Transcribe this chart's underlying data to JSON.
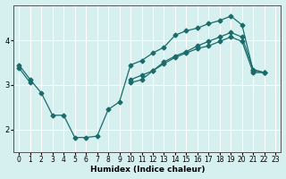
{
  "xlabel": "Humidex (Indice chaleur)",
  "ylabel": "",
  "bg_color": "#d6efef",
  "grid_color": "#ffffff",
  "line_color": "#1a6b6b",
  "line1_x": [
    0,
    1,
    2,
    3,
    4,
    5,
    6,
    7,
    8,
    9,
    10,
    11,
    12,
    13,
    14,
    15,
    16,
    17,
    18,
    19,
    20,
    21,
    22,
    23
  ],
  "line1_y": [
    3.45,
    3.12,
    2.82,
    2.32,
    2.32,
    1.82,
    1.82,
    1.85,
    2.45,
    2.62,
    3.45,
    3.55,
    3.72,
    3.85,
    4.12,
    4.22,
    4.28,
    4.38,
    4.45,
    4.55,
    4.35,
    3.32,
    3.28,
    null
  ],
  "line2_x": [
    0,
    1,
    2,
    3,
    4,
    5,
    6,
    7,
    8,
    9,
    10,
    11,
    12,
    13,
    14,
    15,
    16,
    17,
    18,
    19,
    20,
    21,
    22,
    23
  ],
  "line2_y": [
    3.38,
    3.05,
    null,
    null,
    null,
    null,
    null,
    null,
    null,
    null,
    3.12,
    3.22,
    3.32,
    3.48,
    3.62,
    3.72,
    3.82,
    3.88,
    3.98,
    4.08,
    3.98,
    3.28,
    3.28,
    null
  ],
  "line3_x": [
    0,
    1,
    2,
    3,
    4,
    5,
    6,
    7,
    8,
    9,
    10,
    11,
    12,
    13,
    14,
    15,
    16,
    17,
    18,
    19,
    20,
    21,
    22,
    23
  ],
  "line3_y": [
    null,
    null,
    null,
    null,
    null,
    null,
    null,
    null,
    null,
    null,
    3.05,
    3.12,
    3.32,
    3.52,
    3.65,
    3.75,
    3.88,
    3.98,
    4.08,
    4.18,
    4.08,
    3.35,
    3.28,
    null
  ],
  "ylim": [
    1.5,
    4.8
  ],
  "xlim": [
    -0.5,
    23.5
  ],
  "yticks": [
    2,
    3,
    4
  ],
  "xticks": [
    0,
    1,
    2,
    3,
    4,
    5,
    6,
    7,
    8,
    9,
    10,
    11,
    12,
    13,
    14,
    15,
    16,
    17,
    18,
    19,
    20,
    21,
    22,
    23
  ]
}
